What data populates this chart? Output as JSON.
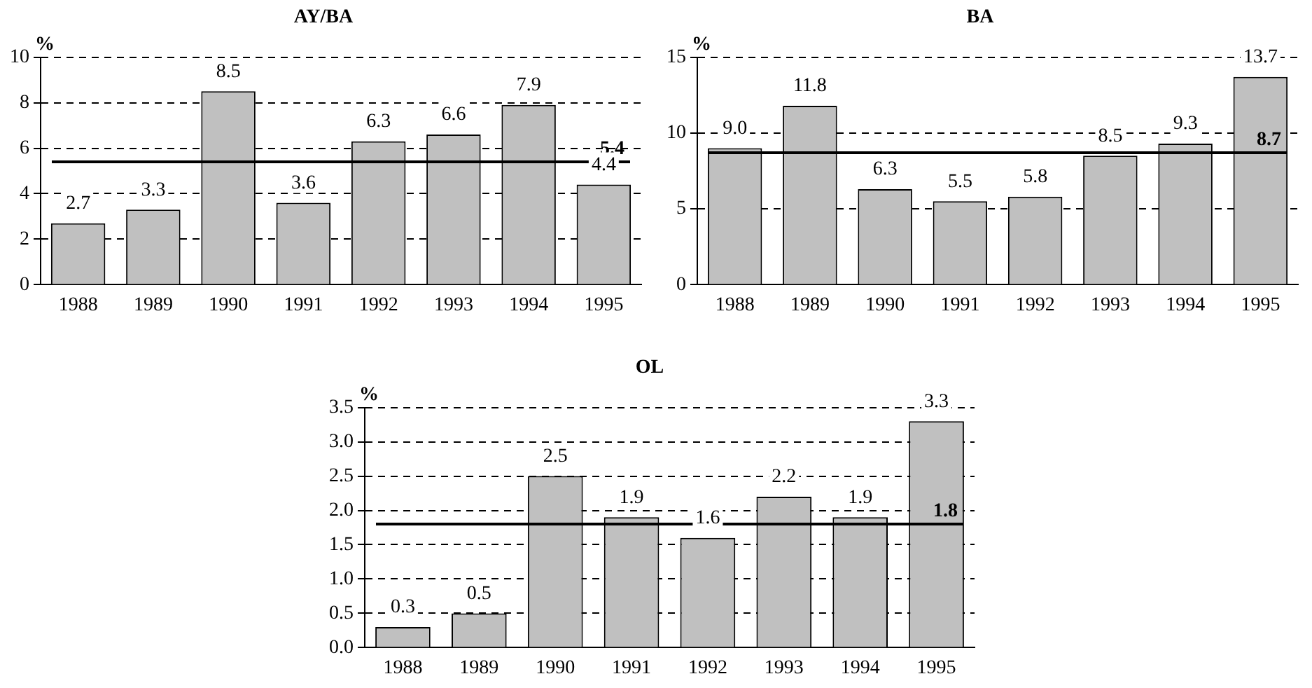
{
  "chart_data": [
    {
      "type": "bar",
      "title": "AY/BA",
      "ylabel": "%",
      "categories": [
        "1988",
        "1989",
        "1990",
        "1991",
        "1992",
        "1993",
        "1994",
        "1995"
      ],
      "values": [
        2.7,
        3.3,
        8.5,
        3.6,
        6.3,
        6.6,
        7.9,
        4.4
      ],
      "value_labels": [
        "2.7",
        "3.3",
        "8.5",
        "3.6",
        "6.3",
        "6.6",
        "7.9",
        "4.4"
      ],
      "color": "#c0c0c0",
      "ylim": [
        0,
        10
      ],
      "yticks": [
        0,
        2,
        4,
        6,
        8,
        10
      ],
      "grid": "y",
      "legend": false,
      "ref_lines": [
        {
          "axis": "y",
          "value": 5.4,
          "label": "5.4"
        }
      ]
    },
    {
      "type": "bar",
      "title": "BA",
      "ylabel": "%",
      "categories": [
        "1988",
        "1989",
        "1990",
        "1991",
        "1992",
        "1993",
        "1994",
        "1995"
      ],
      "values": [
        9.0,
        11.8,
        6.3,
        5.5,
        5.8,
        8.5,
        9.3,
        13.7
      ],
      "value_labels": [
        "9.0",
        "11.8",
        "6.3",
        "5.5",
        "5.8",
        "8.5",
        "9.3",
        "13.7"
      ],
      "color": "#c0c0c0",
      "ylim": [
        0,
        15
      ],
      "yticks": [
        0,
        5,
        10,
        15
      ],
      "grid": "y",
      "legend": false,
      "ref_lines": [
        {
          "axis": "y",
          "value": 8.7,
          "label": "8.7"
        }
      ]
    },
    {
      "type": "bar",
      "title": "OL",
      "ylabel": "%",
      "categories": [
        "1988",
        "1989",
        "1990",
        "1991",
        "1992",
        "1993",
        "1994",
        "1995"
      ],
      "values": [
        0.3,
        0.5,
        2.5,
        1.9,
        1.6,
        2.2,
        1.9,
        3.3
      ],
      "value_labels": [
        "0.3",
        "0.5",
        "2.5",
        "1.9",
        "1.6",
        "2.2",
        "1.9",
        "3.3"
      ],
      "color": "#c0c0c0",
      "ylim": [
        0,
        3.5
      ],
      "yticks": [
        {
          "value": 0,
          "label": "0.0"
        },
        0.5,
        {
          "value": 1,
          "label": "1.0"
        },
        1.5,
        {
          "value": 2,
          "label": "2.0"
        },
        2.5,
        {
          "value": 3,
          "label": "3.0"
        },
        3.5
      ],
      "grid": "y",
      "legend": false,
      "ref_lines": [
        {
          "axis": "y",
          "value": 1.8,
          "label": "1.8"
        }
      ]
    }
  ]
}
